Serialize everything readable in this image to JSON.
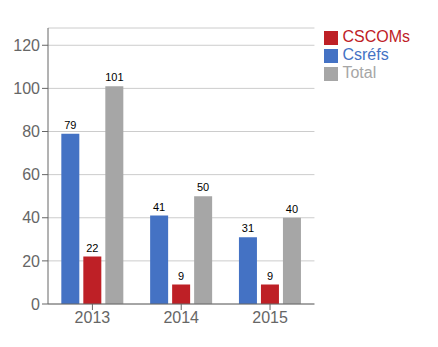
{
  "chart_data": {
    "type": "bar",
    "categories": [
      "2013",
      "2014",
      "2015"
    ],
    "series": [
      {
        "name": "Csréfs",
        "color": "#4472C4",
        "values": [
          79,
          41,
          31
        ]
      },
      {
        "name": "CSCOMs",
        "color": "#BE2026",
        "values": [
          22,
          9,
          9
        ]
      },
      {
        "name": "Total",
        "color": "#A6A6A6",
        "values": [
          101,
          50,
          40
        ]
      }
    ],
    "ylim": [
      0,
      128
    ],
    "yticks": [
      0,
      20,
      40,
      60,
      80,
      100,
      120
    ],
    "grid": true,
    "legend": "upper right",
    "data_labels": true
  }
}
